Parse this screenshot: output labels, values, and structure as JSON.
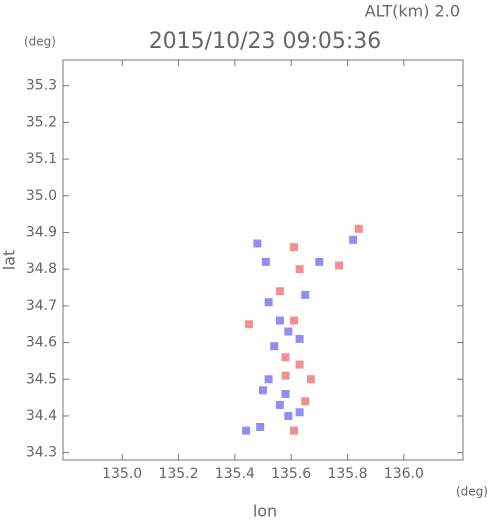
{
  "chart_data": {
    "type": "scatter",
    "title": "2015/10/23 09:05:36",
    "subtitle": "ALT(km) 2.0",
    "x_label": "lon",
    "y_label": "lat",
    "x_unit": "(deg)",
    "y_unit": "(deg)",
    "xlim": [
      134.79,
      136.21
    ],
    "ylim": [
      34.28,
      35.37
    ],
    "xticks": [
      {
        "value": 135,
        "label": "135.0"
      },
      135.2,
      135.4,
      135.6,
      135.8,
      {
        "value": 136,
        "label": "136.0"
      }
    ],
    "yticks": [
      34.3,
      34.4,
      34.5,
      34.6,
      34.7,
      34.8,
      34.9,
      {
        "value": 35,
        "label": "35.0"
      },
      35.1,
      35.2,
      35.3
    ],
    "series": [
      {
        "color": "#7b7bf0",
        "x": [
          135.48,
          135.51,
          135.52,
          135.56,
          135.54,
          135.59,
          135.63,
          135.52,
          135.58,
          135.63,
          135.59,
          135.44,
          135.49,
          135.7,
          135.82,
          135.5,
          135.56,
          135.65
        ],
        "values": [
          34.87,
          34.82,
          34.71,
          34.66,
          34.59,
          34.63,
          34.61,
          34.5,
          34.46,
          34.41,
          34.4,
          34.36,
          34.37,
          34.82,
          34.88,
          34.47,
          34.43,
          34.73
        ]
      },
      {
        "color": "#f07b7b",
        "x": [
          135.61,
          135.63,
          135.56,
          135.61,
          135.58,
          135.63,
          135.67,
          135.65,
          135.61,
          135.77,
          135.84,
          135.45,
          135.58
        ],
        "values": [
          34.86,
          34.8,
          34.74,
          34.66,
          34.56,
          34.54,
          34.5,
          34.44,
          34.36,
          34.81,
          34.91,
          34.65,
          34.51
        ]
      }
    ]
  }
}
